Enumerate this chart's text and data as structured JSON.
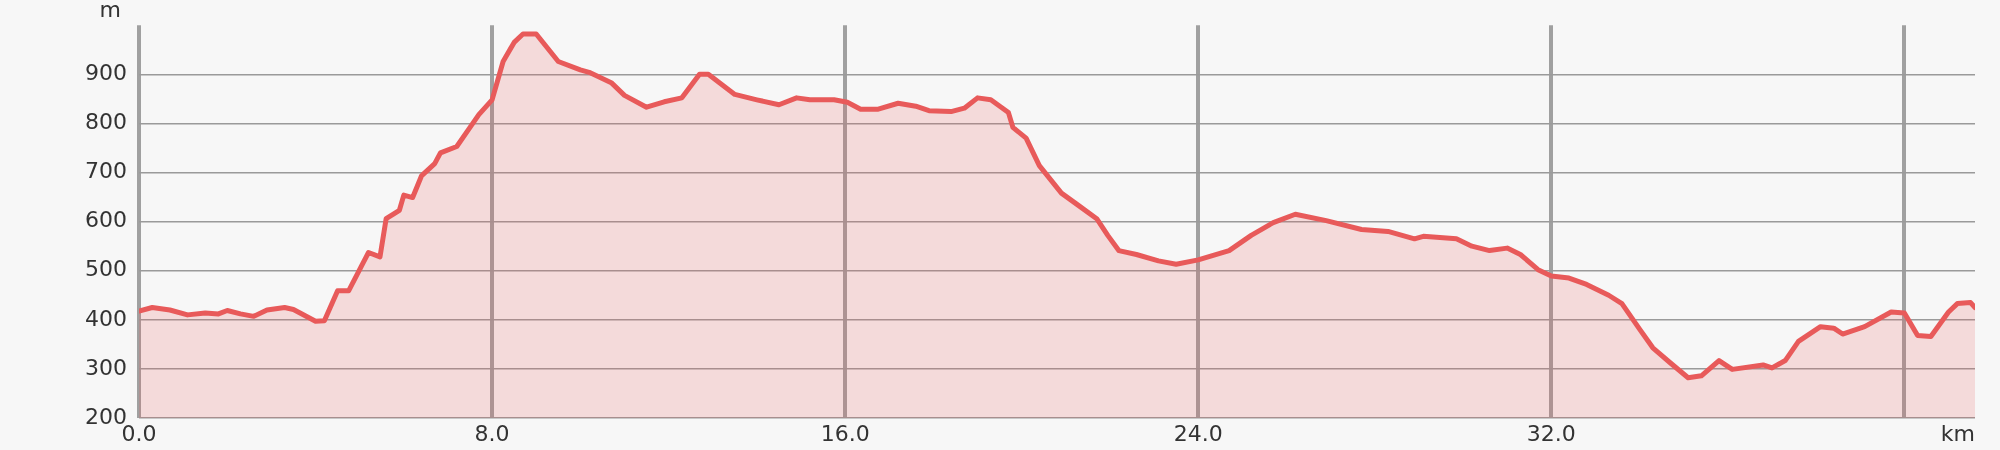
{
  "chart_data": {
    "type": "area",
    "xlabel": "km",
    "ylabel": "m",
    "xlim": [
      0,
      41.6
    ],
    "xticks": [
      {
        "value": 0,
        "label": "0.0"
      },
      {
        "value": 8,
        "label": "8.0"
      },
      {
        "value": 16,
        "label": "16.0"
      },
      {
        "value": 24,
        "label": "24.0"
      },
      {
        "value": 32,
        "label": "32.0"
      },
      {
        "value": 40,
        "label": null
      }
    ],
    "ylim": [
      200,
      1000
    ],
    "yticks": [
      200,
      300,
      400,
      500,
      600,
      700,
      800,
      900
    ],
    "grid": true,
    "series": [
      {
        "color": "#e85a5a",
        "x": [
          0,
          0.3,
          0.7,
          1.1,
          1.5,
          1.8,
          2.0,
          2.3,
          2.6,
          2.9,
          3.3,
          3.5,
          4.0,
          4.2,
          4.5,
          4.75,
          5.06,
          5.2,
          5.46,
          5.6,
          5.9,
          6.0,
          6.2,
          6.4,
          6.7,
          6.83,
          7.2,
          7.5,
          7.7,
          8.0,
          8.25,
          8.5,
          8.7,
          9.0,
          9.5,
          10.0,
          10.2,
          10.7,
          11.0,
          11.5,
          11.9,
          12.3,
          12.7,
          12.9,
          13.5,
          14.0,
          14.5,
          14.9,
          15.2,
          15.75,
          16.05,
          16.35,
          16.75,
          17.2,
          17.6,
          17.9,
          18.4,
          18.7,
          19.0,
          19.3,
          19.7,
          19.8,
          20.1,
          20.4,
          20.9,
          21.3,
          21.7,
          21.95,
          22.2,
          22.6,
          23.1,
          23.5,
          24.0,
          24.7,
          25.2,
          25.7,
          26.2,
          26.9,
          27.7,
          28.3,
          28.9,
          29.1,
          29.85,
          30.2,
          30.6,
          31.0,
          31.3,
          31.7,
          32.0,
          32.4,
          32.8,
          33.3,
          33.6,
          34.0,
          34.3,
          34.7,
          35.1,
          35.4,
          35.8,
          36.1,
          36.8,
          37.0,
          37.3,
          37.6,
          38.1,
          38.4,
          38.6,
          39.1,
          39.7,
          40.0,
          40.3,
          40.6,
          41.0,
          41.2,
          41.5,
          41.6
        ],
        "values": [
          418,
          425,
          420,
          410,
          414,
          412,
          419,
          412,
          407,
          420,
          425,
          421,
          397,
          398,
          459,
          459,
          513,
          537,
          528,
          606,
          623,
          654,
          649,
          693,
          718,
          740,
          753,
          792,
          818,
          848,
          926,
          965,
          982,
          982,
          926,
          909,
          904,
          883,
          857,
          833,
          844,
          852,
          900,
          900,
          859,
          848,
          838,
          852,
          848,
          848,
          843,
          829,
          829,
          841,
          835,
          826,
          824,
          831,
          852,
          848,
          822,
          792,
          770,
          714,
          658,
          632,
          606,
          572,
          541,
          533,
          520,
          513,
          522,
          541,
          572,
          598,
          615,
          602,
          584,
          580,
          565,
          570,
          565,
          550,
          541,
          546,
          533,
          502,
          489,
          485,
          472,
          450,
          433,
          381,
          343,
          312,
          282,
          286,
          317,
          299,
          308,
          302,
          317,
          356,
          386,
          383,
          371,
          386,
          416,
          414,
          368,
          366,
          416,
          433,
          435,
          425
        ]
      }
    ]
  }
}
